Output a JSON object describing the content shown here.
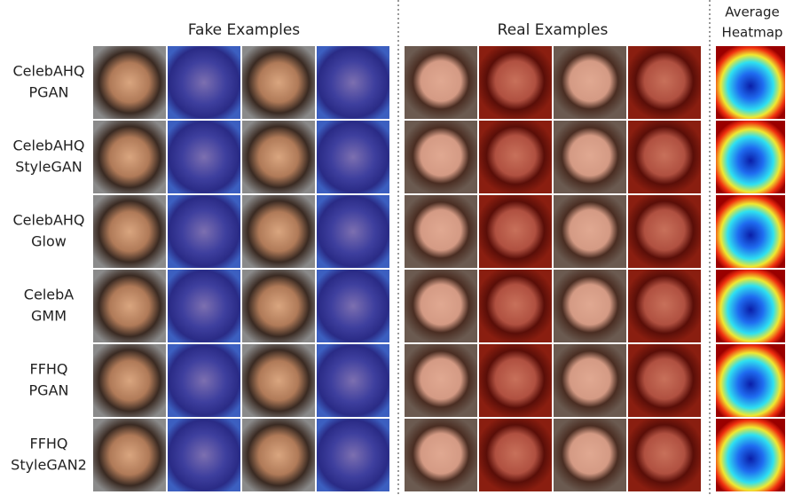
{
  "headers": {
    "fake": "Fake Examples",
    "real": "Real Examples",
    "heatmap": [
      "Average",
      "Heatmap"
    ]
  },
  "rows": [
    {
      "label": [
        "CelebAHQ",
        "PGAN"
      ]
    },
    {
      "label": [
        "CelebAHQ",
        "StyleGAN"
      ]
    },
    {
      "label": [
        "CelebAHQ",
        "Glow"
      ]
    },
    {
      "label": [
        "CelebA",
        "GMM"
      ]
    },
    {
      "label": [
        "FFHQ",
        "PGAN"
      ]
    },
    {
      "label": [
        "FFHQ",
        "StyleGAN2"
      ]
    }
  ]
}
